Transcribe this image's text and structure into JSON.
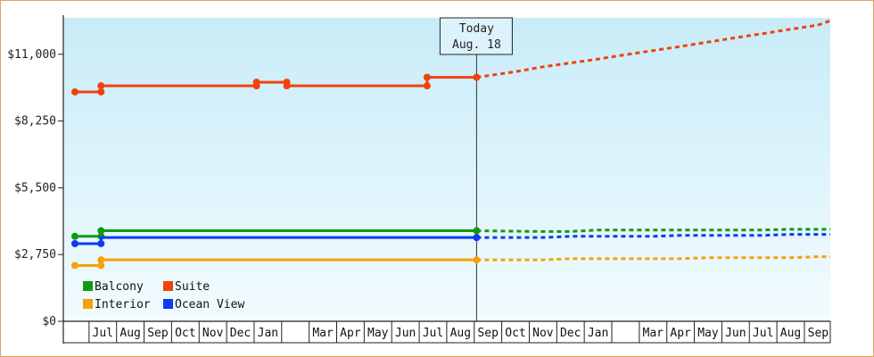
{
  "chart_data": {
    "type": "line",
    "title": "",
    "xlabel": "",
    "ylabel": "",
    "ylim": [
      0,
      12500
    ],
    "y_ticks": [
      "$0",
      "$2,750",
      "$5,500",
      "$8,250",
      "$11,000"
    ],
    "y_tick_values": [
      0,
      2750,
      5500,
      8250,
      11000
    ],
    "x_month_labels": [
      "",
      "Jul",
      "Aug",
      "Sep",
      "Oct",
      "Nov",
      "Dec",
      "Jan",
      "",
      "Mar",
      "Apr",
      "May",
      "Jun",
      "Jul",
      "Aug",
      "Sep",
      "Oct",
      "Nov",
      "Dec",
      "Jan",
      "",
      "Mar",
      "Apr",
      "May",
      "Jun",
      "Jul",
      "Aug",
      "Sep",
      ""
    ],
    "today": {
      "line1": "Today",
      "line2": "Aug. 18",
      "month_index": 14.6
    },
    "grid": false,
    "legend_placement": "bottom-left",
    "colors": {
      "Balcony": "#0f9a0f",
      "Suite": "#f0420e",
      "Interior": "#f5a10c",
      "Ocean View": "#0a3bf5",
      "plot_top": "#c8ecf8",
      "plot_bottom": "#f2fbfe"
    },
    "legend": [
      {
        "name": "Balcony",
        "color": "#0f9a0f"
      },
      {
        "name": "Suite",
        "color": "#f0420e"
      },
      {
        "name": "Interior",
        "color": "#f5a10c"
      },
      {
        "name": "Ocean View",
        "color": "#0a3bf5"
      }
    ],
    "series": [
      {
        "name": "Suite",
        "color": "#f0420e",
        "history": [
          [
            0,
            9450
          ],
          [
            0.95,
            9450
          ],
          [
            0.95,
            9700
          ],
          [
            6.6,
            9700
          ],
          [
            6.6,
            9850
          ],
          [
            7.7,
            9850
          ],
          [
            7.7,
            9700
          ],
          [
            12.8,
            9700
          ],
          [
            12.8,
            10050
          ],
          [
            14.6,
            10050
          ]
        ],
        "markers": [
          [
            0,
            9450
          ],
          [
            0.95,
            9450
          ],
          [
            0.95,
            9700
          ],
          [
            6.6,
            9700
          ],
          [
            6.6,
            9850
          ],
          [
            7.7,
            9850
          ],
          [
            7.7,
            9700
          ],
          [
            12.8,
            9700
          ],
          [
            12.8,
            10050
          ],
          [
            14.6,
            10050
          ]
        ],
        "forecast": [
          [
            14.6,
            10050
          ],
          [
            16,
            10280
          ],
          [
            17,
            10480
          ],
          [
            18,
            10640
          ],
          [
            19,
            10800
          ],
          [
            20,
            10980
          ],
          [
            21,
            11150
          ],
          [
            22,
            11320
          ],
          [
            23,
            11500
          ],
          [
            24,
            11680
          ],
          [
            25,
            11850
          ],
          [
            26,
            12030
          ],
          [
            27,
            12200
          ],
          [
            28,
            12380
          ],
          [
            28.7,
            12450
          ]
        ]
      },
      {
        "name": "Balcony",
        "color": "#0f9a0f",
        "history": [
          [
            0,
            3500
          ],
          [
            0.95,
            3500
          ],
          [
            0.95,
            3730
          ],
          [
            14.6,
            3730
          ]
        ],
        "markers": [
          [
            0,
            3500
          ],
          [
            0.95,
            3500
          ],
          [
            0.95,
            3730
          ],
          [
            14.6,
            3730
          ]
        ],
        "forecast": [
          [
            14.6,
            3730
          ],
          [
            17,
            3700
          ],
          [
            18,
            3700
          ],
          [
            19,
            3760
          ],
          [
            25,
            3760
          ],
          [
            26,
            3790
          ],
          [
            28.7,
            3790
          ]
        ]
      },
      {
        "name": "Ocean View",
        "color": "#0a3bf5",
        "history": [
          [
            0,
            3200
          ],
          [
            0.95,
            3200
          ],
          [
            0.95,
            3450
          ],
          [
            14.6,
            3450
          ]
        ],
        "markers": [
          [
            0,
            3200
          ],
          [
            0.95,
            3200
          ],
          [
            14.6,
            3450
          ]
        ],
        "forecast": [
          [
            14.6,
            3450
          ],
          [
            17,
            3450
          ],
          [
            18,
            3500
          ],
          [
            21,
            3500
          ],
          [
            22,
            3540
          ],
          [
            25,
            3540
          ],
          [
            26,
            3580
          ],
          [
            28.7,
            3580
          ]
        ]
      },
      {
        "name": "Interior",
        "color": "#f5a10c",
        "history": [
          [
            0,
            2300
          ],
          [
            0.95,
            2300
          ],
          [
            0.95,
            2530
          ],
          [
            14.6,
            2530
          ]
        ],
        "markers": [
          [
            0,
            2300
          ],
          [
            0.95,
            2300
          ],
          [
            0.95,
            2530
          ],
          [
            14.6,
            2530
          ]
        ],
        "forecast": [
          [
            14.6,
            2530
          ],
          [
            17,
            2530
          ],
          [
            18,
            2580
          ],
          [
            22,
            2580
          ],
          [
            23,
            2620
          ],
          [
            26,
            2620
          ],
          [
            27,
            2660
          ],
          [
            28.7,
            2660
          ]
        ]
      }
    ]
  }
}
